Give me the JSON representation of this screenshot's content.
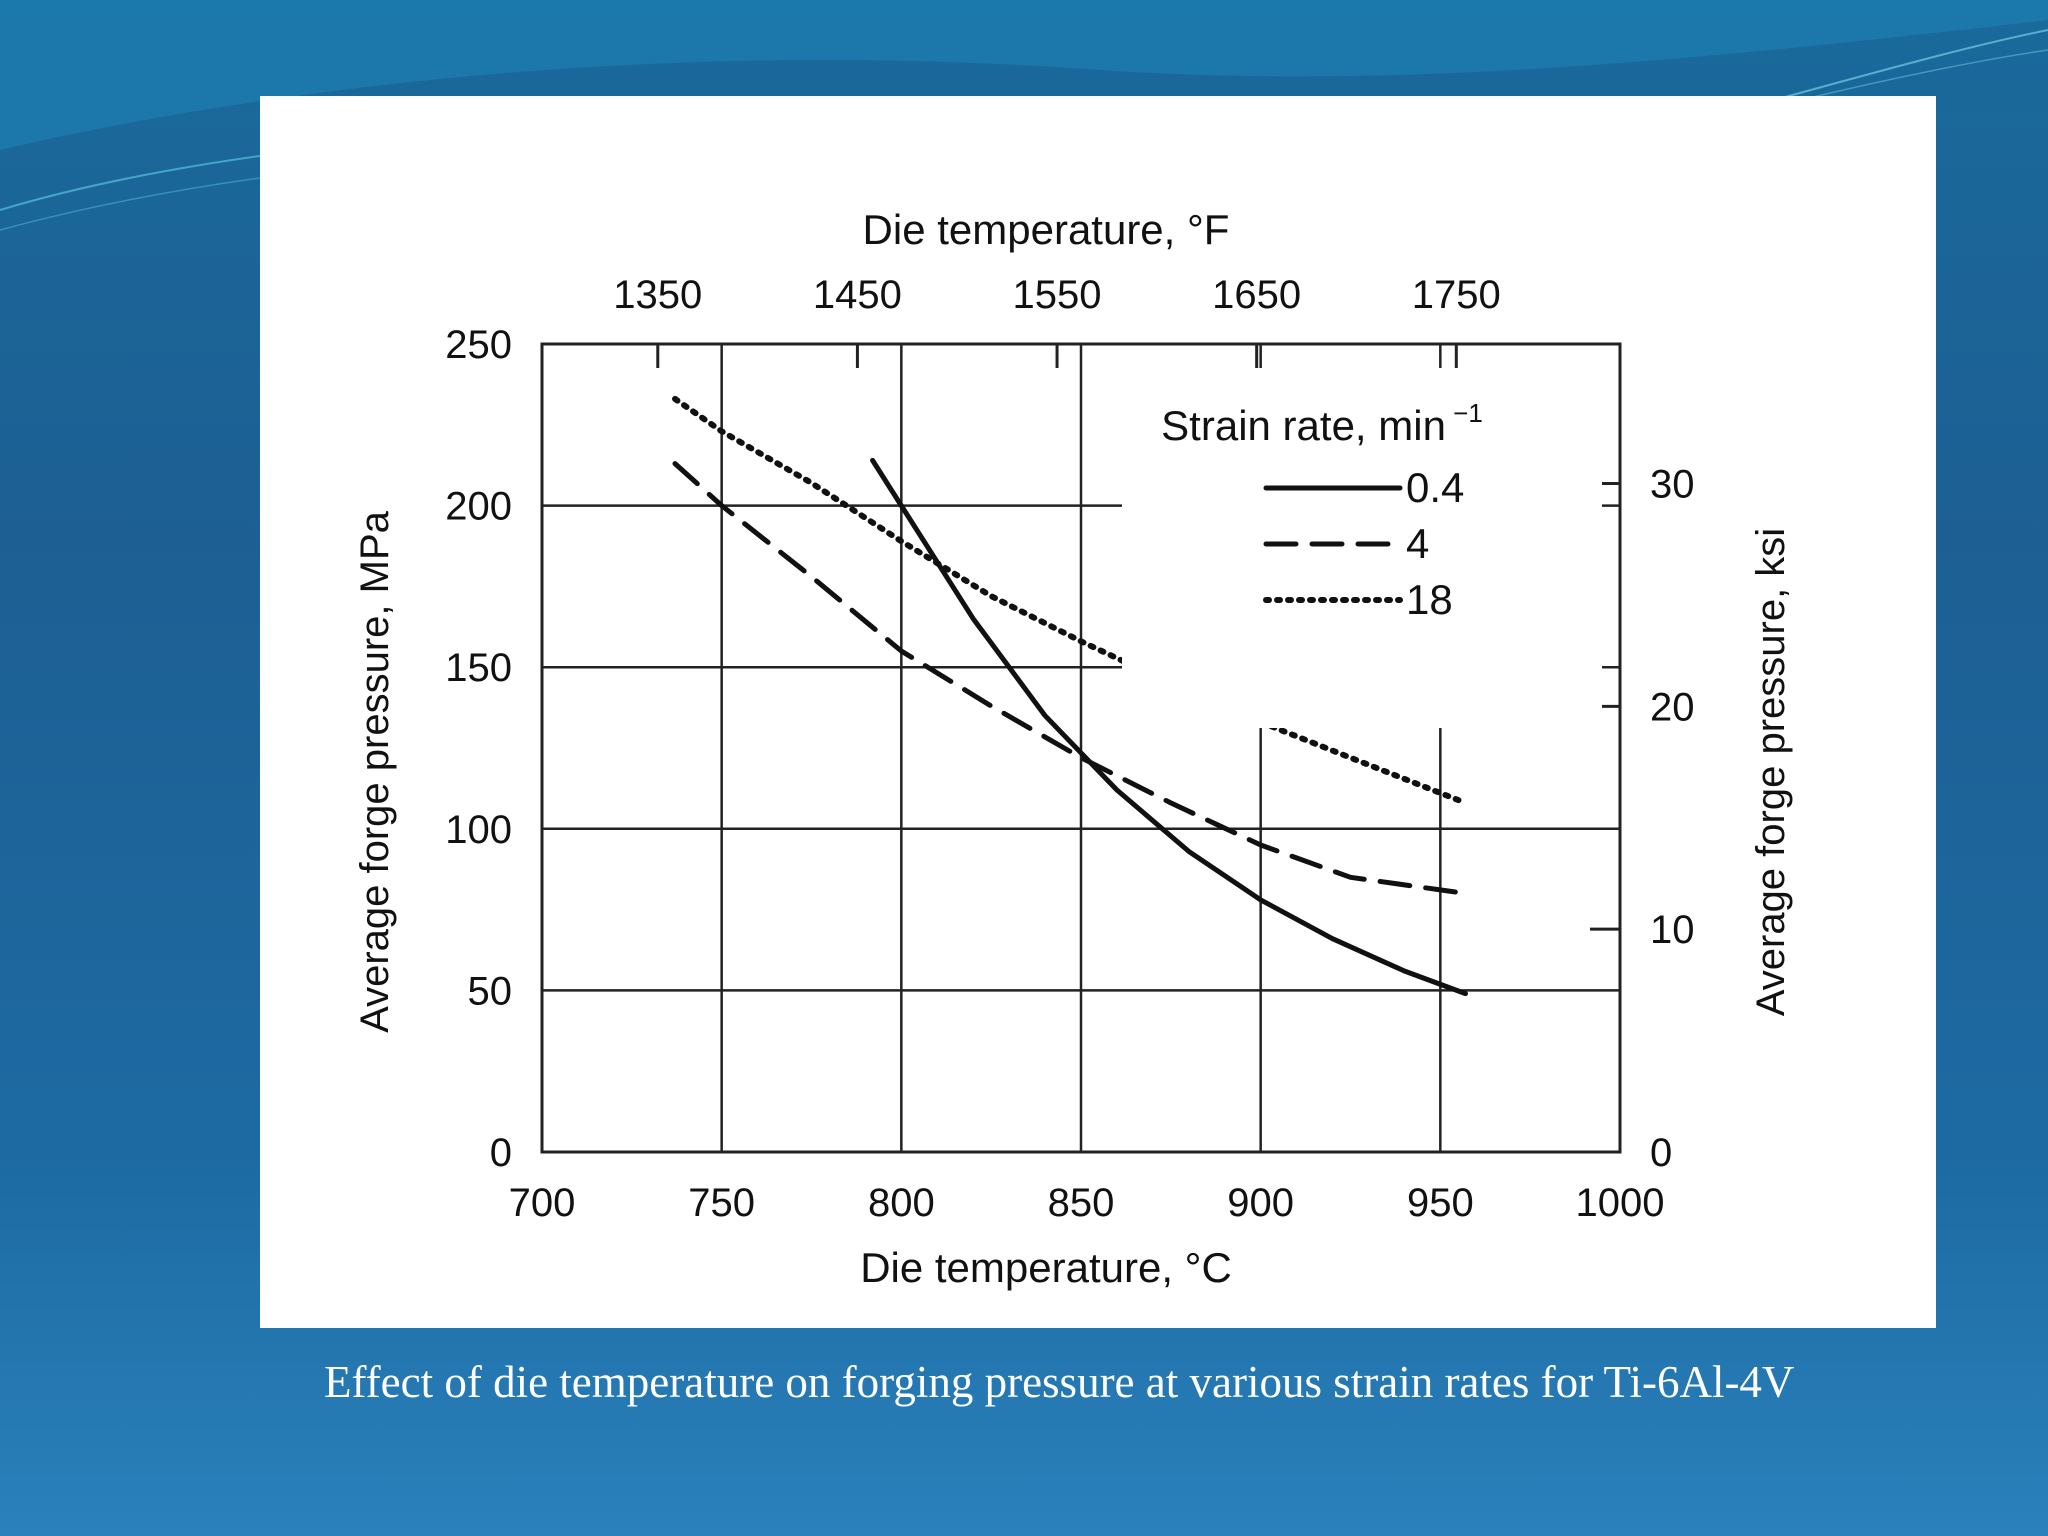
{
  "caption": "Effect of die temperature on forging pressure at various strain rates for Ti-6Al-4V",
  "chart_data": {
    "type": "line",
    "title": "",
    "xlabel": "Die temperature, °C",
    "x2label": "Die temperature, °F",
    "ylabel": "Average forge pressure, MPa",
    "y2label": "Average forge pressure, ksi",
    "xlim": [
      700,
      1000
    ],
    "ylim": [
      0,
      250
    ],
    "x_ticks": [
      700,
      750,
      800,
      850,
      900,
      950,
      1000
    ],
    "y_ticks": [
      0,
      50,
      100,
      150,
      200,
      250
    ],
    "x2_ticks": [
      1350,
      1450,
      1550,
      1650,
      1750
    ],
    "y2_ticks": [
      0,
      10,
      20,
      30
    ],
    "grid": true,
    "legend": {
      "title": "Strain rate, min",
      "title_superscript": "−1",
      "placement": "top-right"
    },
    "series": [
      {
        "name": "0.4",
        "style": "solid",
        "x": [
          792,
          800,
          820,
          840,
          860,
          880,
          900,
          920,
          940,
          957
        ],
        "y": [
          214,
          200,
          165,
          135,
          112,
          93,
          78,
          66,
          56,
          49
        ]
      },
      {
        "name": "4",
        "style": "dashed",
        "x": [
          737,
          750,
          775,
          800,
          825,
          850,
          875,
          900,
          925,
          957
        ],
        "y": [
          213,
          200,
          178,
          155,
          138,
          122,
          108,
          95,
          85,
          80
        ]
      },
      {
        "name": "18",
        "style": "dotted",
        "x": [
          737,
          750,
          775,
          800,
          825,
          850,
          875,
          900,
          925,
          957
        ],
        "y": [
          233,
          223,
          207,
          189,
          172,
          158,
          145,
          133,
          122,
          108
        ]
      }
    ]
  },
  "colors": {
    "line": "#111111",
    "grid": "#222222",
    "background": "#ffffff"
  }
}
